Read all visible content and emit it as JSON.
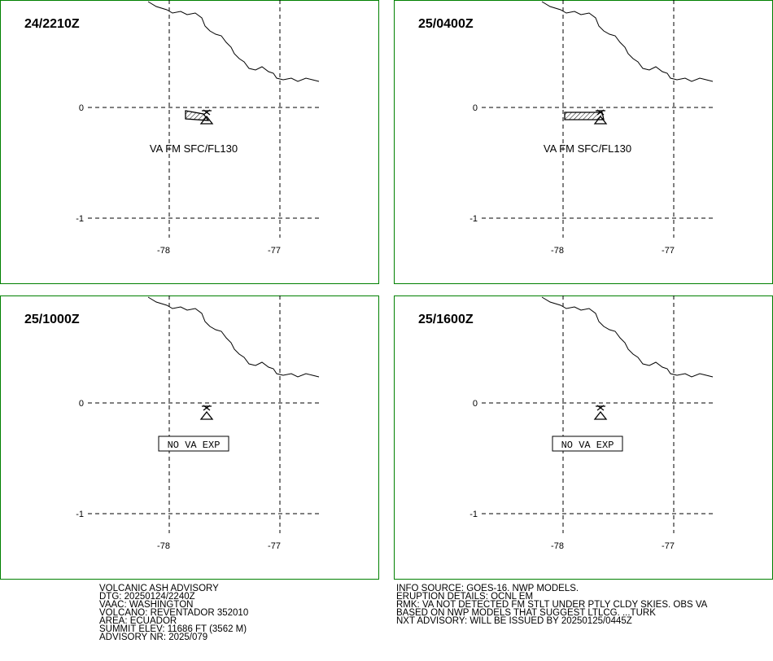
{
  "panels": [
    {
      "time": "24/2210Z",
      "label": "VA FM SFC/FL130",
      "boxed": false
    },
    {
      "time": "25/0400Z",
      "label": "VA FM SFC/FL130",
      "boxed": false
    },
    {
      "time": "25/1000Z",
      "label": "NO VA EXP",
      "boxed": true
    },
    {
      "time": "25/1600Z",
      "label": "NO VA EXP",
      "boxed": true
    }
  ],
  "lat_ticks": [
    0,
    -1
  ],
  "lon_ticks": [
    -78,
    -77
  ],
  "advisory_left": [
    "VOLCANIC ASH ADVISORY",
    "DTG: 20250124/2240Z",
    "VAAC: WASHINGTON",
    "VOLCANO: REVENTADOR 352010",
    "AREA: ECUADOR",
    "SUMMIT ELEV: 11686 FT (3562 M)",
    "ADVISORY NR: 2025/079"
  ],
  "advisory_right": [
    "INFO SOURCE: GOES-16. NWP MODELS.",
    "ERUPTION DETAILS: OCNL EM",
    "RMK: VA NOT DETECTED FM STLT UNDER PTLY CLDY SKIES. OBS VA",
    "BASED ON NWP MODELS THAT SUGGEST LTLCG. ...TURK",
    "NXT ADVISORY: WILL BE ISSUED BY 20250125/0445Z"
  ]
}
